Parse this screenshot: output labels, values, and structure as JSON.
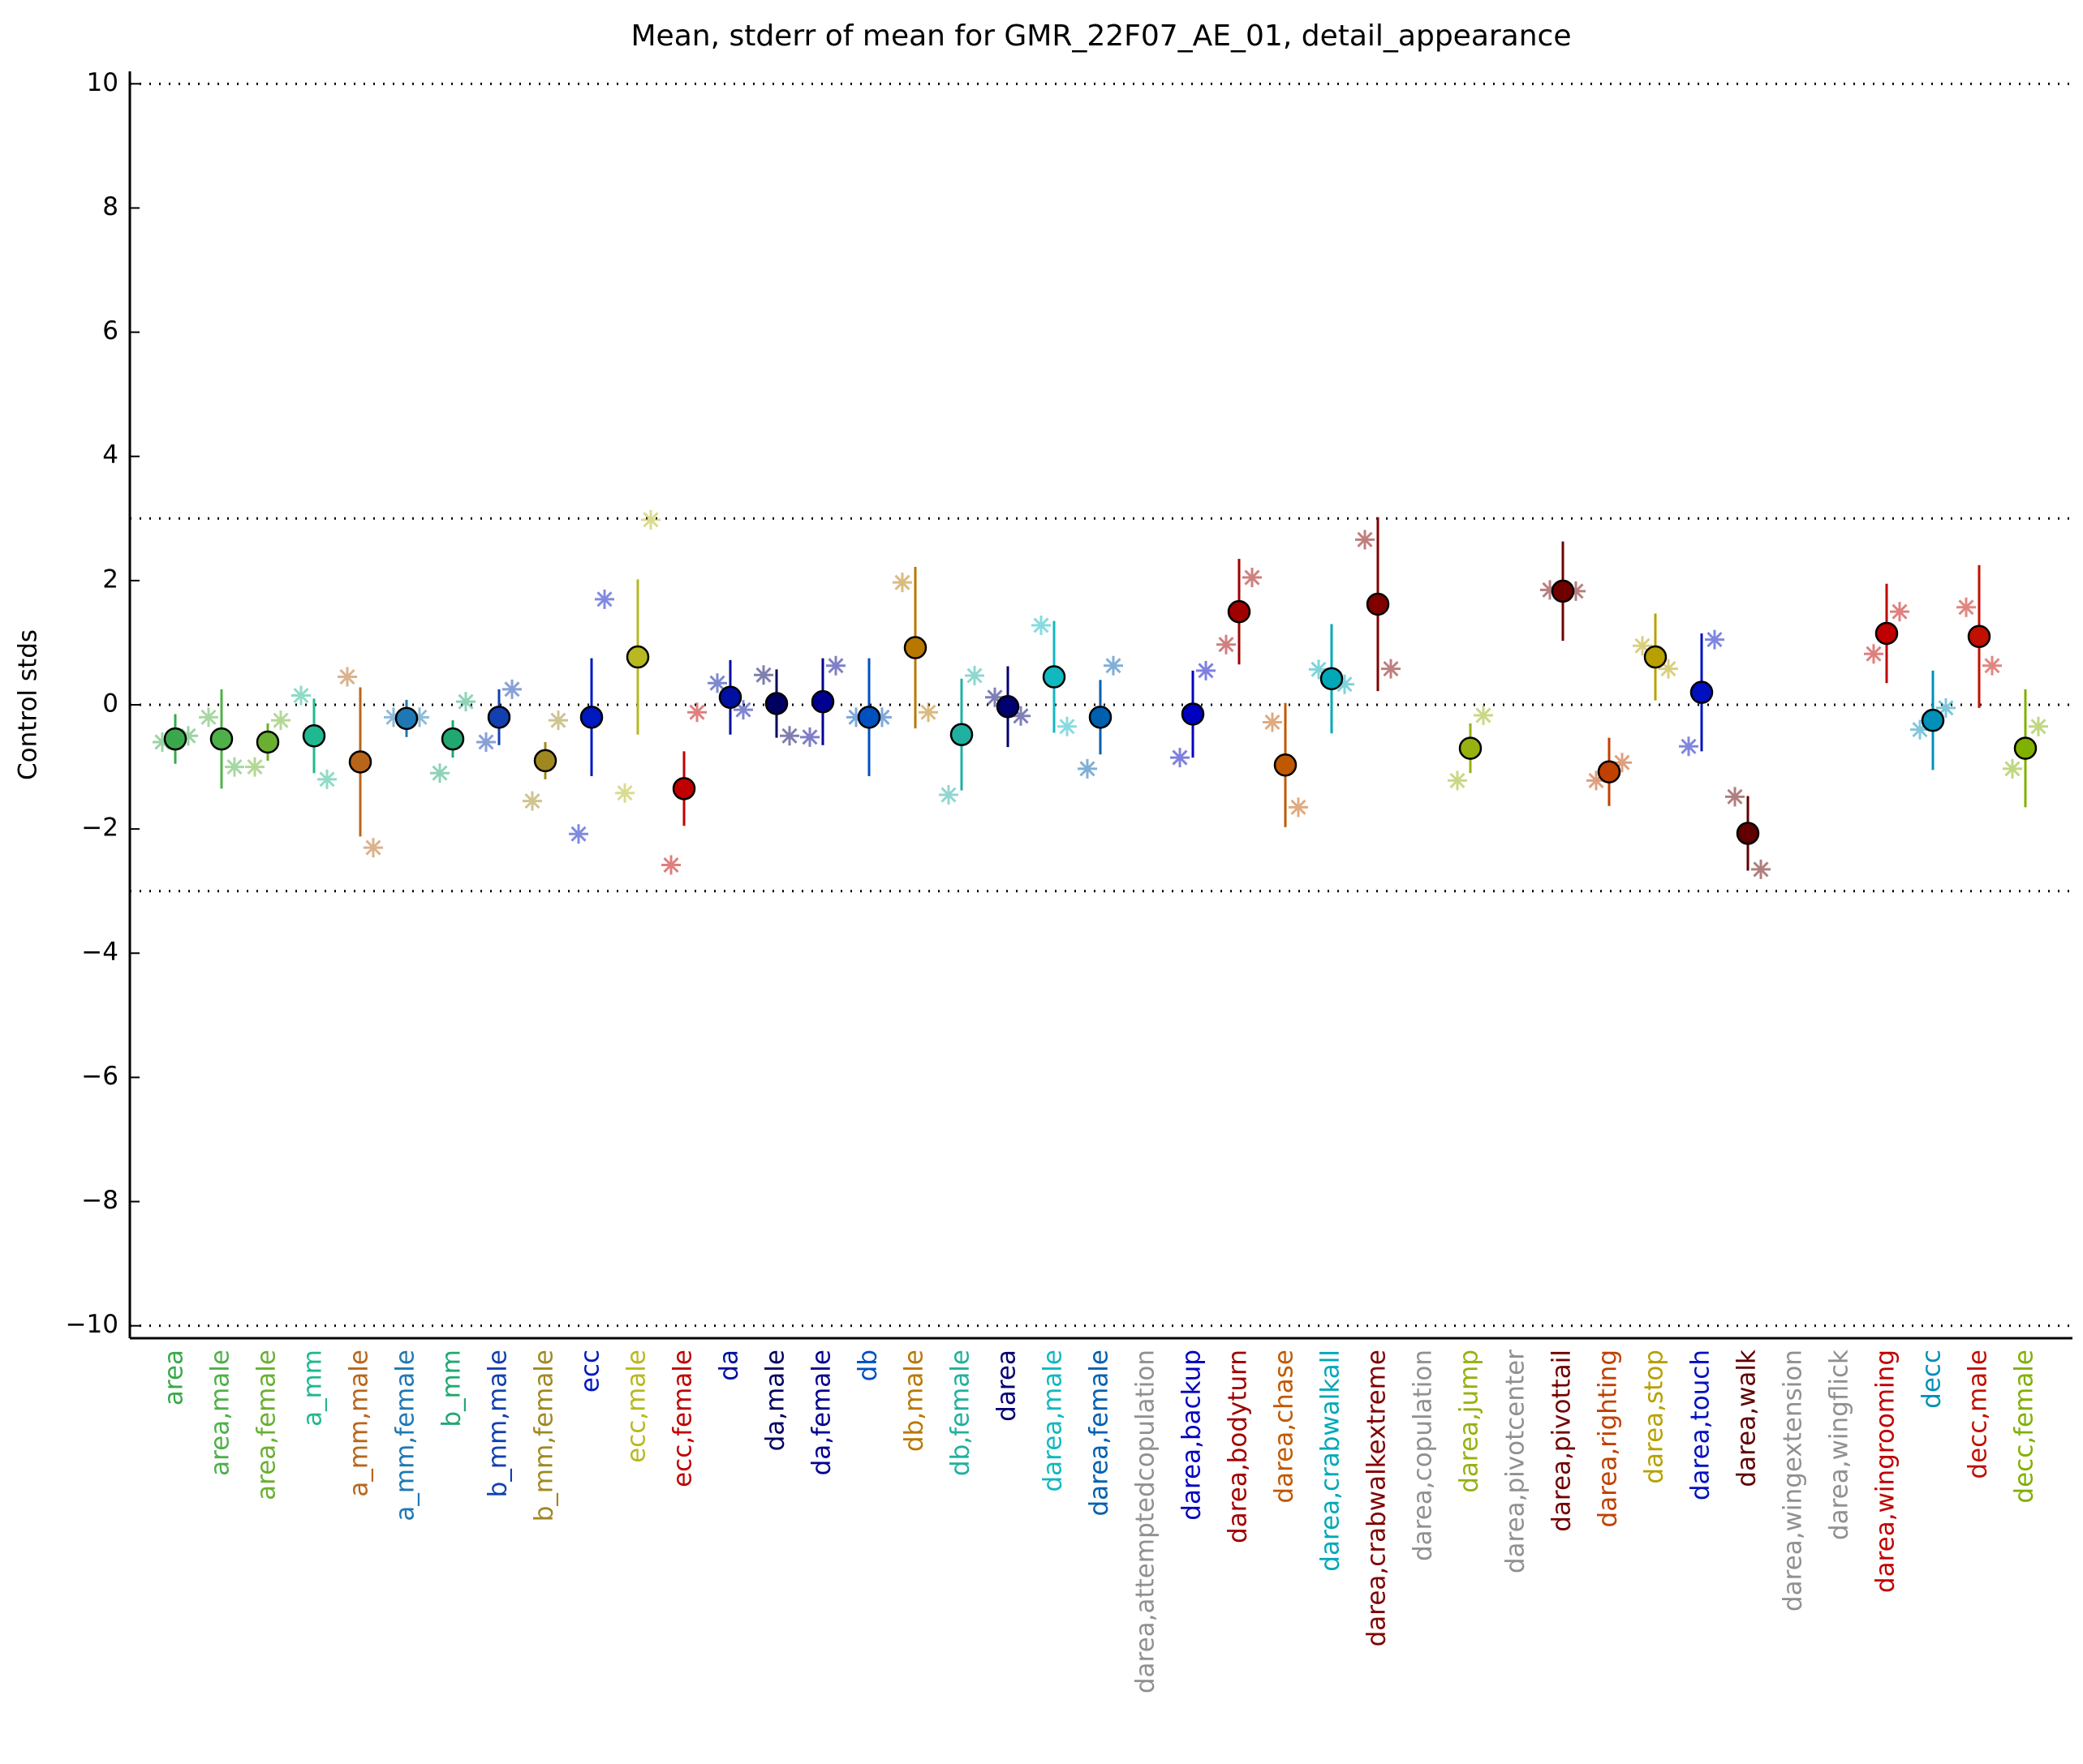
{
  "chart_data": {
    "type": "errorbar",
    "title": "Mean, stderr of mean for GMR_22F07_AE_01, detail_appearance",
    "ylabel": "Control stds",
    "categories": [
      "area",
      "area,male",
      "area,female",
      "a_mm",
      "a_mm,male",
      "a_mm,female",
      "b_mm",
      "b_mm,male",
      "b_mm,female",
      "ecc",
      "ecc,male",
      "ecc,female",
      "da",
      "da,male",
      "da,female",
      "db",
      "db,male",
      "db,female",
      "darea",
      "darea,male",
      "darea,female",
      "darea,attemptedcopulation",
      "darea,backup",
      "darea,bodyturn",
      "darea,chase",
      "darea,crabwalkall",
      "darea,crabwalkextreme",
      "darea,copulation",
      "darea,jump",
      "darea,pivotcenter",
      "darea,pivottail",
      "darea,righting",
      "darea,stop",
      "darea,touch",
      "darea,walk",
      "darea,wingextension",
      "darea,wingflick",
      "darea,wingrooming",
      "decc",
      "decc,male",
      "decc,female"
    ],
    "colors": [
      "#3aa84a",
      "#4fb04a",
      "#6ab030",
      "#20b890",
      "#b8651b",
      "#1f78b4",
      "#20a870",
      "#1240b0",
      "#a08820",
      "#0018c0",
      "#b8b820",
      "#c00000",
      "#0010a0",
      "#000060",
      "#000090",
      "#0050c0",
      "#b87800",
      "#20b0a0",
      "#000070",
      "#10b8c0",
      "#0060b0",
      "#909090",
      "#0000c0",
      "#a00000",
      "#c05800",
      "#00a8b8",
      "#800000",
      "#909090",
      "#98b010",
      "#909090",
      "#700000",
      "#c04000",
      "#b8a000",
      "#0010c0",
      "#600000",
      "#909090",
      "#909090",
      "#c00000",
      "#0090b8",
      "#c01000",
      "#80b000"
    ],
    "values": [
      -0.55,
      -0.55,
      -0.6,
      -0.5,
      -0.92,
      -0.22,
      -0.55,
      -0.2,
      -0.9,
      -0.2,
      0.77,
      -1.35,
      0.12,
      0.02,
      0.05,
      -0.2,
      0.92,
      -0.48,
      -0.03,
      0.45,
      -0.2,
      null,
      -0.15,
      1.5,
      -0.97,
      0.42,
      1.62,
      null,
      -0.7,
      null,
      1.83,
      -1.08,
      0.77,
      0.2,
      -2.07,
      null,
      null,
      1.15,
      -0.25,
      1.1,
      -0.7
    ],
    "errors": [
      0.4,
      0.8,
      0.3,
      0.6,
      1.2,
      0.3,
      0.3,
      0.45,
      0.3,
      0.95,
      1.25,
      0.6,
      0.6,
      0.55,
      0.7,
      0.95,
      1.3,
      0.9,
      0.65,
      0.9,
      0.6,
      null,
      0.7,
      0.85,
      1.0,
      0.88,
      1.4,
      null,
      0.4,
      null,
      0.8,
      0.55,
      0.7,
      0.95,
      0.6,
      null,
      null,
      0.8,
      0.8,
      1.15,
      0.95
    ],
    "values_left": [
      -0.6,
      -0.2,
      -1.0,
      0.15,
      0.45,
      -0.2,
      -1.1,
      -0.6,
      -1.55,
      -2.08,
      -1.42,
      -2.58,
      0.35,
      0.48,
      -0.52,
      -0.2,
      1.97,
      -1.45,
      0.12,
      1.28,
      -1.03,
      null,
      -0.85,
      0.97,
      -0.28,
      0.57,
      2.66,
      null,
      -1.22,
      null,
      1.85,
      -1.22,
      0.95,
      -0.67,
      -1.48,
      null,
      null,
      0.82,
      -0.4,
      1.57,
      -1.03
    ],
    "values_right": [
      -0.5,
      -1.0,
      -0.25,
      -1.2,
      -2.3,
      -0.2,
      0.05,
      0.25,
      -0.25,
      1.7,
      2.98,
      -0.12,
      -0.08,
      -0.5,
      0.63,
      -0.2,
      -0.12,
      0.47,
      -0.18,
      -0.35,
      0.63,
      null,
      0.55,
      2.05,
      -1.65,
      0.33,
      0.58,
      null,
      -0.17,
      null,
      1.83,
      -0.93,
      0.58,
      1.05,
      -2.65,
      null,
      null,
      1.5,
      -0.05,
      0.63,
      -0.35
    ],
    "ylim": [
      -10.2,
      10.2
    ],
    "yticks": [
      {
        "value": -10,
        "label": "−10"
      },
      {
        "value": -8,
        "label": "−8"
      },
      {
        "value": -6,
        "label": "−6"
      },
      {
        "value": -4,
        "label": "−4"
      },
      {
        "value": -2,
        "label": "−2"
      },
      0,
      2,
      4,
      6,
      8,
      10
    ],
    "hlines": [
      -10,
      -3,
      0,
      3,
      10
    ]
  }
}
